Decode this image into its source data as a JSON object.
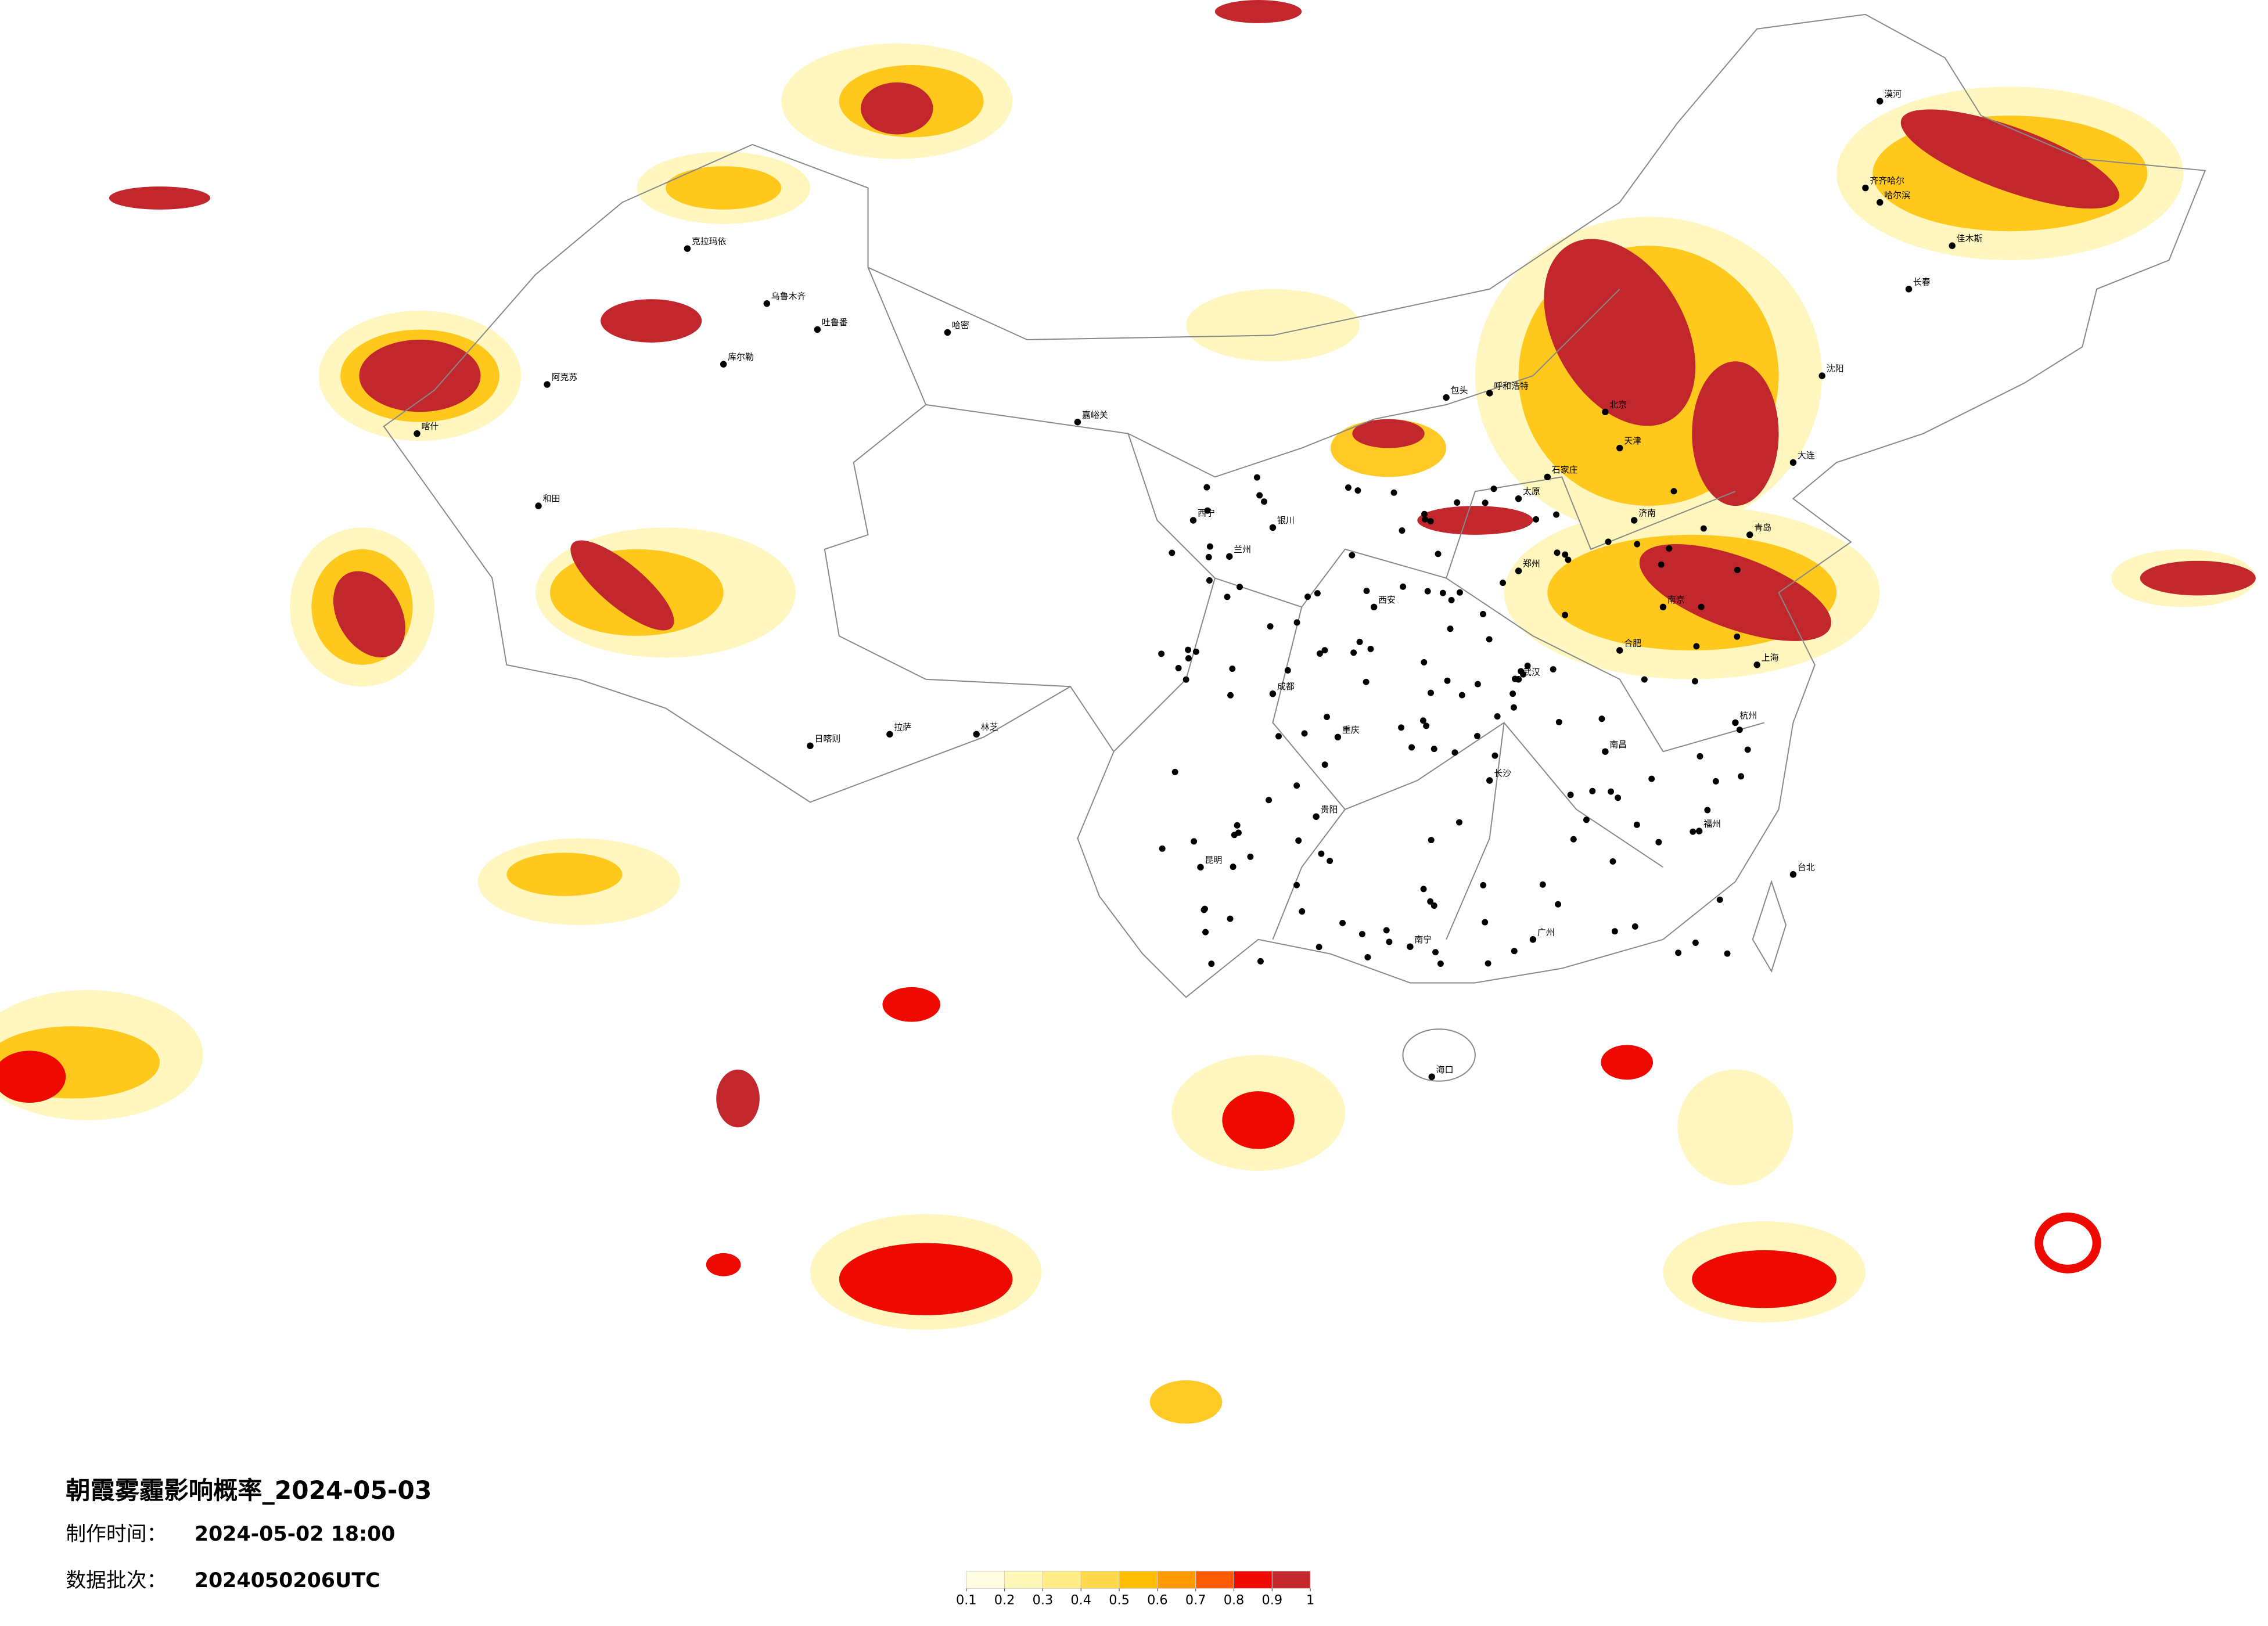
{
  "title": "朝霞雾霾影响概率_2024-05-03",
  "production_time": {
    "label": "制作时间：",
    "value": "2024-05-02 18:00"
  },
  "batch": {
    "label": "数据批次：",
    "value": "2024050206UTC"
  },
  "legend": {
    "ticks": [
      0.1,
      0.2,
      0.3,
      0.4,
      0.5,
      0.6,
      0.7,
      0.8,
      0.9,
      1
    ],
    "colors": [
      "#fffce0",
      "#fff6b8",
      "#ffec86",
      "#ffd84c",
      "#ffbf00",
      "#ff9a00",
      "#ff5a00",
      "#ee0a00",
      "#c1272d"
    ]
  },
  "cities": [
    "克拉玛依",
    "乌鲁木齐",
    "吐鲁番",
    "哈密",
    "阿克苏",
    "喀什",
    "和田",
    "库尔勒",
    "嘉峪关",
    "西宁",
    "拉萨",
    "日喀则",
    "林芝",
    "兰州",
    "银川",
    "呼和浩特",
    "包头",
    "北京",
    "天津",
    "石家庄",
    "太原",
    "济南",
    "郑州",
    "西安",
    "成都",
    "重庆",
    "武汉",
    "长沙",
    "南京",
    "上海",
    "杭州",
    "合肥",
    "南昌",
    "福州",
    "广州",
    "南宁",
    "昆明",
    "贵阳",
    "海口",
    "哈尔滨",
    "长春",
    "沈阳",
    "大连",
    "青岛",
    "台北",
    "漠河",
    "齐齐哈尔",
    "佳木斯"
  ]
}
